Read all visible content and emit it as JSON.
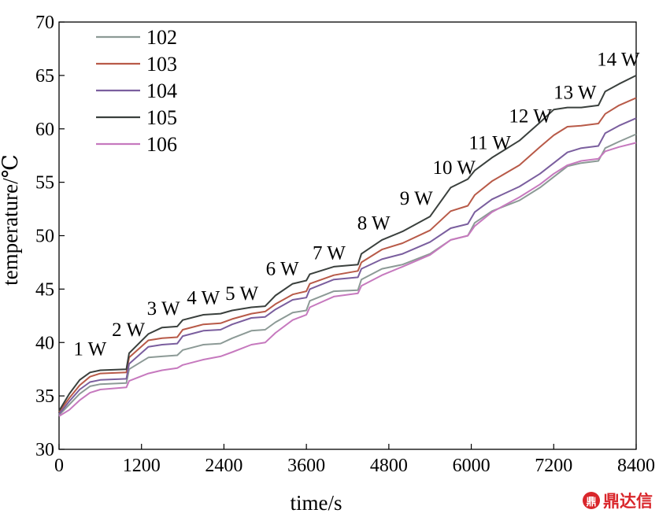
{
  "chart_data": {
    "type": "line",
    "title": "",
    "xlabel": "time/s",
    "ylabel": "temperature/℃",
    "xlim": [
      0,
      8400
    ],
    "ylim": [
      30,
      70
    ],
    "xticks": [
      0,
      1200,
      2400,
      3600,
      4800,
      6000,
      7200,
      8400
    ],
    "yticks": [
      30,
      35,
      40,
      45,
      50,
      55,
      60,
      65,
      70
    ],
    "grid": false,
    "legend": "top-left",
    "series": [
      {
        "name": "102",
        "color": "#8c9a96",
        "points": [
          [
            0,
            33.2
          ],
          [
            150,
            34.2
          ],
          [
            300,
            35.2
          ],
          [
            450,
            35.9
          ],
          [
            600,
            36.1
          ],
          [
            980,
            36.2
          ],
          [
            1020,
            37.5
          ],
          [
            1300,
            38.6
          ],
          [
            1500,
            38.7
          ],
          [
            1720,
            38.8
          ],
          [
            1800,
            39.3
          ],
          [
            2100,
            39.8
          ],
          [
            2350,
            39.9
          ],
          [
            2520,
            40.4
          ],
          [
            2800,
            41.1
          ],
          [
            3000,
            41.2
          ],
          [
            3150,
            41.9
          ],
          [
            3400,
            42.8
          ],
          [
            3600,
            43.0
          ],
          [
            3650,
            43.9
          ],
          [
            4000,
            44.8
          ],
          [
            4350,
            44.9
          ],
          [
            4400,
            45.9
          ],
          [
            4700,
            46.9
          ],
          [
            5000,
            47.3
          ],
          [
            5400,
            48.3
          ],
          [
            5700,
            49.6
          ],
          [
            5950,
            50.0
          ],
          [
            6050,
            51.2
          ],
          [
            6300,
            52.3
          ],
          [
            6700,
            53.3
          ],
          [
            7000,
            54.5
          ],
          [
            7200,
            55.5
          ],
          [
            7400,
            56.5
          ],
          [
            7600,
            56.8
          ],
          [
            7850,
            57.0
          ],
          [
            7950,
            58.2
          ],
          [
            8150,
            58.8
          ],
          [
            8400,
            59.5
          ]
        ]
      },
      {
        "name": "103",
        "color": "#b85a48",
        "points": [
          [
            0,
            33.5
          ],
          [
            150,
            34.8
          ],
          [
            300,
            36.0
          ],
          [
            450,
            36.8
          ],
          [
            600,
            37.1
          ],
          [
            980,
            37.2
          ],
          [
            1020,
            38.6
          ],
          [
            1300,
            40.2
          ],
          [
            1500,
            40.4
          ],
          [
            1720,
            40.5
          ],
          [
            1800,
            41.2
          ],
          [
            2100,
            41.7
          ],
          [
            2350,
            41.8
          ],
          [
            2520,
            42.2
          ],
          [
            2800,
            42.7
          ],
          [
            3000,
            42.9
          ],
          [
            3150,
            43.6
          ],
          [
            3400,
            44.5
          ],
          [
            3600,
            44.8
          ],
          [
            3650,
            45.5
          ],
          [
            4000,
            46.3
          ],
          [
            4350,
            46.7
          ],
          [
            4400,
            47.5
          ],
          [
            4700,
            48.7
          ],
          [
            5000,
            49.3
          ],
          [
            5400,
            50.5
          ],
          [
            5700,
            52.3
          ],
          [
            5950,
            52.8
          ],
          [
            6050,
            53.8
          ],
          [
            6300,
            55.1
          ],
          [
            6700,
            56.6
          ],
          [
            7000,
            58.3
          ],
          [
            7200,
            59.4
          ],
          [
            7400,
            60.2
          ],
          [
            7600,
            60.3
          ],
          [
            7850,
            60.5
          ],
          [
            7950,
            61.4
          ],
          [
            8150,
            62.2
          ],
          [
            8400,
            62.9
          ]
        ]
      },
      {
        "name": "104",
        "color": "#7a5e9e",
        "points": [
          [
            0,
            33.3
          ],
          [
            150,
            34.5
          ],
          [
            300,
            35.6
          ],
          [
            450,
            36.3
          ],
          [
            600,
            36.5
          ],
          [
            980,
            36.6
          ],
          [
            1020,
            38.0
          ],
          [
            1300,
            39.6
          ],
          [
            1500,
            39.8
          ],
          [
            1720,
            39.9
          ],
          [
            1800,
            40.6
          ],
          [
            2100,
            41.1
          ],
          [
            2350,
            41.2
          ],
          [
            2520,
            41.7
          ],
          [
            2800,
            42.3
          ],
          [
            3000,
            42.4
          ],
          [
            3150,
            43.1
          ],
          [
            3400,
            44.0
          ],
          [
            3600,
            44.2
          ],
          [
            3650,
            45.0
          ],
          [
            4000,
            45.9
          ],
          [
            4350,
            46.1
          ],
          [
            4400,
            46.9
          ],
          [
            4700,
            47.8
          ],
          [
            5000,
            48.3
          ],
          [
            5400,
            49.4
          ],
          [
            5700,
            50.7
          ],
          [
            5950,
            51.1
          ],
          [
            6050,
            52.2
          ],
          [
            6300,
            53.4
          ],
          [
            6700,
            54.6
          ],
          [
            7000,
            55.8
          ],
          [
            7200,
            56.8
          ],
          [
            7400,
            57.8
          ],
          [
            7600,
            58.2
          ],
          [
            7850,
            58.4
          ],
          [
            7950,
            59.6
          ],
          [
            8150,
            60.3
          ],
          [
            8400,
            61.0
          ]
        ]
      },
      {
        "name": "105",
        "color": "#3a403d",
        "points": [
          [
            0,
            33.6
          ],
          [
            150,
            35.2
          ],
          [
            300,
            36.5
          ],
          [
            450,
            37.2
          ],
          [
            600,
            37.4
          ],
          [
            980,
            37.5
          ],
          [
            1020,
            39.0
          ],
          [
            1300,
            40.8
          ],
          [
            1500,
            41.4
          ],
          [
            1720,
            41.5
          ],
          [
            1800,
            42.1
          ],
          [
            2100,
            42.6
          ],
          [
            2350,
            42.7
          ],
          [
            2520,
            43.0
          ],
          [
            2800,
            43.3
          ],
          [
            3000,
            43.4
          ],
          [
            3150,
            44.4
          ],
          [
            3400,
            45.5
          ],
          [
            3600,
            45.8
          ],
          [
            3650,
            46.4
          ],
          [
            4000,
            47.1
          ],
          [
            4350,
            47.3
          ],
          [
            4400,
            48.3
          ],
          [
            4700,
            49.6
          ],
          [
            5000,
            50.4
          ],
          [
            5400,
            51.8
          ],
          [
            5700,
            54.5
          ],
          [
            5950,
            55.3
          ],
          [
            6050,
            56.1
          ],
          [
            6300,
            57.3
          ],
          [
            6700,
            58.9
          ],
          [
            7000,
            60.6
          ],
          [
            7200,
            61.8
          ],
          [
            7400,
            62.0
          ],
          [
            7600,
            62.0
          ],
          [
            7850,
            62.2
          ],
          [
            7950,
            63.5
          ],
          [
            8150,
            64.2
          ],
          [
            8400,
            65.0
          ]
        ]
      },
      {
        "name": "106",
        "color": "#c679be",
        "points": [
          [
            0,
            33.1
          ],
          [
            150,
            33.7
          ],
          [
            300,
            34.6
          ],
          [
            450,
            35.3
          ],
          [
            600,
            35.6
          ],
          [
            980,
            35.8
          ],
          [
            1020,
            36.4
          ],
          [
            1300,
            37.1
          ],
          [
            1500,
            37.4
          ],
          [
            1720,
            37.6
          ],
          [
            1800,
            37.9
          ],
          [
            2100,
            38.4
          ],
          [
            2350,
            38.7
          ],
          [
            2520,
            39.1
          ],
          [
            2800,
            39.8
          ],
          [
            3000,
            40.0
          ],
          [
            3150,
            40.9
          ],
          [
            3400,
            42.1
          ],
          [
            3600,
            42.6
          ],
          [
            3650,
            43.3
          ],
          [
            4000,
            44.3
          ],
          [
            4350,
            44.6
          ],
          [
            4400,
            45.3
          ],
          [
            4700,
            46.3
          ],
          [
            5000,
            47.1
          ],
          [
            5400,
            48.2
          ],
          [
            5700,
            49.6
          ],
          [
            5950,
            50.0
          ],
          [
            6050,
            50.9
          ],
          [
            6300,
            52.2
          ],
          [
            6700,
            53.6
          ],
          [
            7000,
            54.8
          ],
          [
            7200,
            55.8
          ],
          [
            7400,
            56.6
          ],
          [
            7600,
            57.0
          ],
          [
            7850,
            57.2
          ],
          [
            7950,
            57.9
          ],
          [
            8150,
            58.3
          ],
          [
            8400,
            58.7
          ]
        ]
      }
    ],
    "annotations": [
      {
        "text": "1 W",
        "x": 450,
        "y": 38.8
      },
      {
        "text": "2 W",
        "x": 1010,
        "y": 40.6
      },
      {
        "text": "3 W",
        "x": 1520,
        "y": 42.6
      },
      {
        "text": "4 W",
        "x": 2100,
        "y": 43.6
      },
      {
        "text": "5 W",
        "x": 2660,
        "y": 44.0
      },
      {
        "text": "6 W",
        "x": 3250,
        "y": 46.3
      },
      {
        "text": "7 W",
        "x": 3930,
        "y": 47.8
      },
      {
        "text": "8 W",
        "x": 4580,
        "y": 50.6
      },
      {
        "text": "9 W",
        "x": 5200,
        "y": 52.9
      },
      {
        "text": "10 W",
        "x": 5750,
        "y": 55.8
      },
      {
        "text": "11 W",
        "x": 6270,
        "y": 58.1
      },
      {
        "text": "12 W",
        "x": 6860,
        "y": 60.6
      },
      {
        "text": "13 W",
        "x": 7510,
        "y": 62.8
      },
      {
        "text": "14 W",
        "x": 8140,
        "y": 65.9
      }
    ]
  },
  "watermark": {
    "icon": "鼎",
    "text": "鼎达信"
  }
}
